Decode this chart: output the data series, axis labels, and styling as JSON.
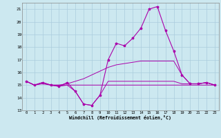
{
  "xlabel": "Windchill (Refroidissement éolien,°C)",
  "background_color": "#cce8f0",
  "grid_color": "#aaccdd",
  "line_color": "#aa00aa",
  "x": [
    0,
    1,
    2,
    3,
    4,
    5,
    6,
    7,
    8,
    9,
    10,
    11,
    12,
    13,
    14,
    15,
    16,
    17,
    18,
    19,
    20,
    21,
    22,
    23
  ],
  "ylim": [
    13,
    21.5
  ],
  "xlim": [
    -0.5,
    23.5
  ],
  "yticks": [
    13,
    14,
    15,
    16,
    17,
    18,
    19,
    20,
    21
  ],
  "xticks": [
    0,
    1,
    2,
    3,
    4,
    5,
    6,
    7,
    8,
    9,
    10,
    11,
    12,
    13,
    14,
    15,
    16,
    17,
    18,
    19,
    20,
    21,
    22,
    23
  ],
  "line1": [
    15.3,
    15.0,
    15.2,
    15.0,
    14.9,
    15.2,
    14.5,
    13.5,
    13.4,
    14.2,
    17.0,
    18.3,
    18.1,
    18.7,
    19.5,
    21.0,
    21.2,
    19.3,
    17.7,
    15.8,
    15.1,
    15.1,
    15.2,
    15.0
  ],
  "line2": [
    15.3,
    15.0,
    15.2,
    15.0,
    14.9,
    15.0,
    14.5,
    13.5,
    13.4,
    14.2,
    15.3,
    15.3,
    15.3,
    15.3,
    15.3,
    15.3,
    15.3,
    15.3,
    15.3,
    15.1,
    15.1,
    15.1,
    15.2,
    15.0
  ],
  "line3": [
    15.3,
    15.0,
    15.1,
    15.0,
    15.0,
    15.0,
    15.0,
    15.0,
    15.0,
    15.0,
    15.0,
    15.0,
    15.0,
    15.0,
    15.0,
    15.0,
    15.0,
    15.0,
    15.0,
    15.0,
    15.0,
    15.0,
    15.0,
    15.0
  ],
  "line4": [
    15.3,
    15.0,
    15.2,
    15.0,
    15.0,
    15.1,
    15.3,
    15.5,
    15.8,
    16.1,
    16.4,
    16.6,
    16.7,
    16.8,
    16.9,
    16.9,
    16.9,
    16.9,
    16.9,
    15.8,
    15.1,
    15.1,
    15.2,
    15.0
  ]
}
